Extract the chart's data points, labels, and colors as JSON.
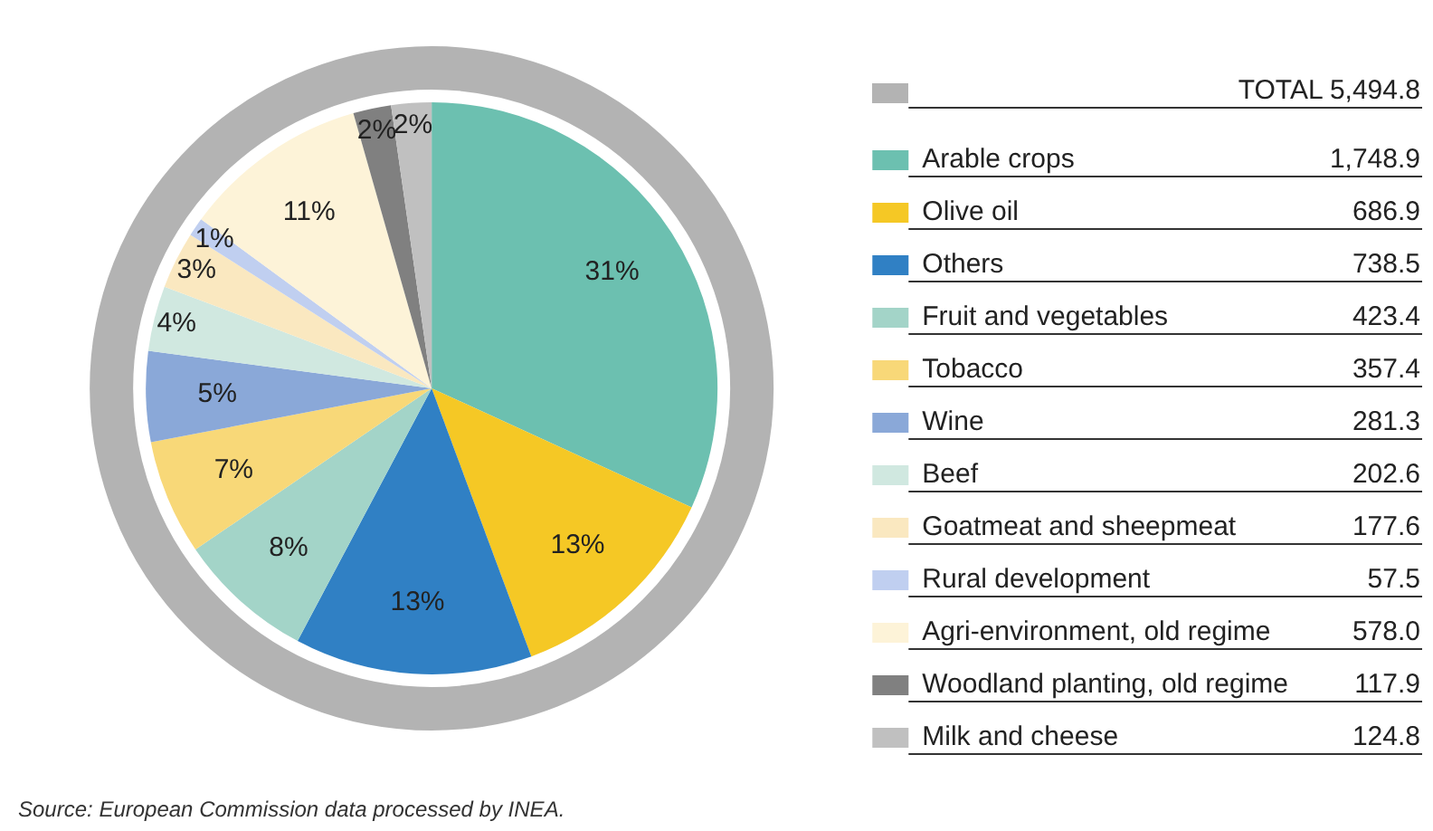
{
  "chart_data": {
    "type": "pie",
    "categories": [
      "Arable crops",
      "Olive oil",
      "Others",
      "Fruit and vegetables",
      "Tobacco",
      "Wine",
      "Beef",
      "Goatmeat and sheepmeat",
      "Rural development",
      "Agri-environment, old regime",
      "Woodland planting, old regime",
      "Milk and cheese"
    ],
    "values": [
      1748.9,
      686.9,
      738.5,
      423.4,
      357.4,
      281.3,
      202.6,
      177.6,
      57.5,
      578.0,
      117.9,
      124.8
    ],
    "colors": [
      "#6cc0b0",
      "#f5c825",
      "#3080c4",
      "#a3d4c8",
      "#f8d878",
      "#8aa8d8",
      "#d0e8e0",
      "#fae8c0",
      "#c0cff0",
      "#fdf3d8",
      "#808080",
      "#c0c0c0"
    ],
    "value_labels": [
      "1,748.9",
      "686.9",
      "738.5",
      "423.4",
      "357.4",
      "281.3",
      "202.6",
      "177.6",
      "57.5",
      "578.0",
      "117.9",
      "124.8"
    ],
    "legend": "right",
    "annotations": [
      "TOTAL 5,494.8",
      "Source: European Commission data processed by INEA.",
      {
        "text": "31%",
        "x": "Arable crops"
      },
      {
        "text": "13%",
        "x": "Olive oil"
      },
      {
        "text": "13%",
        "x": "Others"
      },
      {
        "text": "8%",
        "x": "Fruit and vegetables"
      },
      {
        "text": "7%",
        "x": "Tobacco"
      },
      {
        "text": "5%",
        "x": "Wine"
      },
      {
        "text": "4%",
        "x": "Beef"
      },
      {
        "text": "3%",
        "x": "Goatmeat and sheepmeat"
      },
      {
        "text": "1%",
        "x": "Rural development"
      },
      {
        "text": "11%",
        "x": "Agri-environment, old regime"
      },
      {
        "text": "2%",
        "x": "Woodland planting, old regime"
      },
      {
        "text": "2%",
        "x": "Milk and cheese"
      }
    ]
  }
}
